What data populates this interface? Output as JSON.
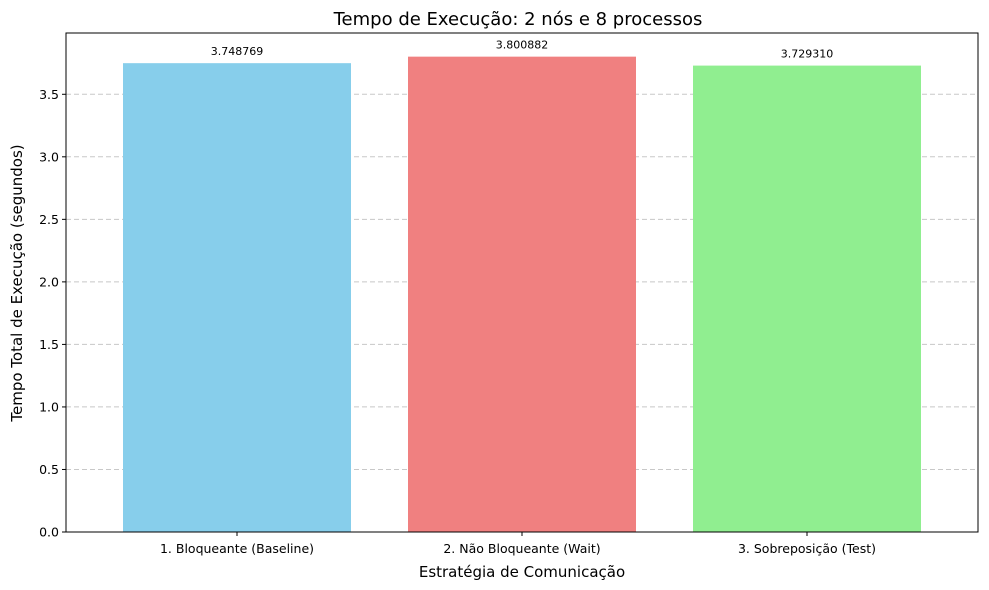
{
  "chart_data": {
    "type": "bar",
    "title": "Tempo de Execução: 2 nós e 8 processos",
    "xlabel": "Estratégia de Comunicação",
    "ylabel": "Tempo Total de Execução (segundos)",
    "categories": [
      "1. Bloqueante (Baseline)",
      "2. Não Bloqueante (Wait)",
      "3. Sobreposição (Test)"
    ],
    "values": [
      3.748769,
      3.800882,
      3.72931
    ],
    "value_labels": [
      "3.748769",
      "3.800882",
      "3.729310"
    ],
    "colors": [
      "#87ceeb",
      "#f08080",
      "#90ee90"
    ],
    "ylim": [
      0,
      3.99
    ],
    "yticks": [
      0.0,
      0.5,
      1.0,
      1.5,
      2.0,
      2.5,
      3.0,
      3.5
    ],
    "ytick_labels": [
      "0.0",
      "0.5",
      "1.0",
      "1.5",
      "2.0",
      "2.5",
      "3.0",
      "3.5"
    ],
    "grid": "y-dashed"
  }
}
